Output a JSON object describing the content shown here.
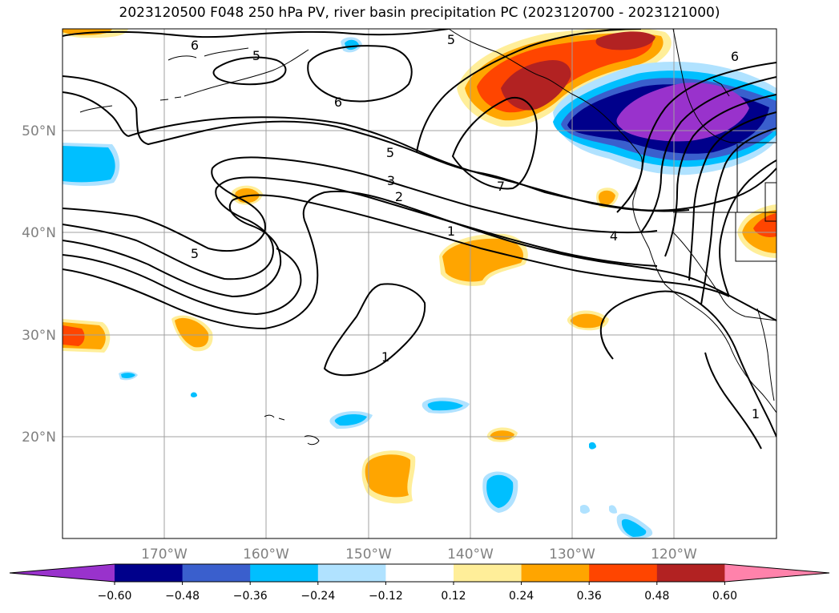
{
  "title": "2023120500 F048 250 hPa PV, river basin precipitation PC (2023120700 - 2023121000)",
  "lat_labels": [
    "50°N",
    "40°N",
    "30°N",
    "20°N"
  ],
  "lon_labels": [
    "170°W",
    "160°W",
    "150°W",
    "140°W",
    "130°W",
    "120°W"
  ],
  "contour_labels": [
    "6",
    "5",
    "5",
    "6",
    "6",
    "5",
    "7",
    "3",
    "2",
    "1",
    "4",
    "5",
    "1",
    "1"
  ],
  "colorbar": {
    "ticks": [
      "−0.60",
      "−0.48",
      "−0.36",
      "−0.24",
      "−0.12",
      "0.12",
      "0.24",
      "0.36",
      "0.48",
      "0.60"
    ],
    "colors": [
      "#9932cc",
      "#00008b",
      "#3a5fcd",
      "#00bfff",
      "#b0e2ff",
      "#ffffff",
      "#ffee99",
      "#ffa500",
      "#ff4500",
      "#b22222",
      "#ff82ab"
    ]
  },
  "colors": {
    "grid": "#a0a0a0",
    "coast": "#000000"
  }
}
